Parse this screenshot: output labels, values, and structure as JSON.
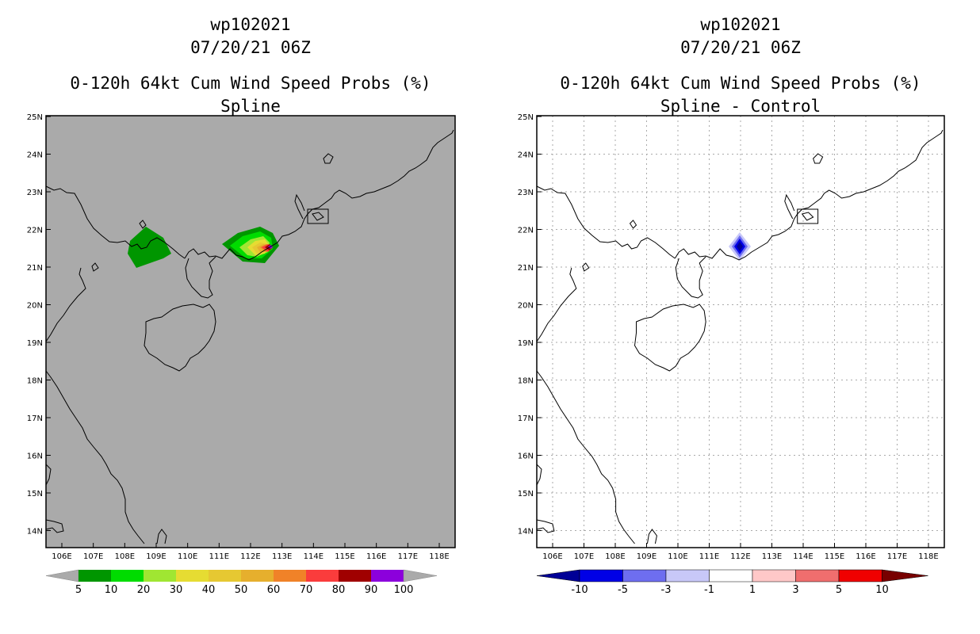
{
  "left_panel": {
    "title_lines": [
      "wp102021",
      "07/20/21 06Z",
      "0-120h 64kt Cum Wind Speed Probs (%)",
      "Spline"
    ],
    "lat_labels": [
      "25N",
      "24N",
      "23N",
      "22N",
      "21N",
      "20N",
      "19N",
      "18N",
      "17N",
      "16N",
      "15N",
      "14N"
    ],
    "lon_labels": [
      "106E",
      "107E",
      "108E",
      "109E",
      "110E",
      "111E",
      "112E",
      "113E",
      "114E",
      "115E",
      "116E",
      "117E",
      "118E"
    ],
    "colorbar": {
      "labels": [
        "5",
        "10",
        "20",
        "30",
        "40",
        "50",
        "60",
        "70",
        "80",
        "90",
        "100"
      ],
      "colors": [
        "#009600",
        "#00dc00",
        "#a0e632",
        "#e6dc32",
        "#e6c832",
        "#e6af2d",
        "#f08228",
        "#fa3c3c",
        "#a00000",
        "#8c00dc"
      ],
      "end_color": "#aaaaaa"
    }
  },
  "right_panel": {
    "title_lines": [
      "wp102021",
      "07/20/21 06Z",
      "0-120h 64kt Cum Wind Speed Probs (%)",
      "Spline - Control"
    ],
    "lat_labels": [
      "25N",
      "24N",
      "23N",
      "22N",
      "21N",
      "20N",
      "19N",
      "18N",
      "17N",
      "16N",
      "15N",
      "14N"
    ],
    "lon_labels": [
      "106E",
      "107E",
      "108E",
      "109E",
      "110E",
      "111E",
      "112E",
      "113E",
      "114E",
      "115E",
      "116E",
      "117E",
      "118E"
    ],
    "colorbar": {
      "labels": [
        "-10",
        "-5",
        "-3",
        "-1",
        "1",
        "3",
        "5",
        "10"
      ],
      "colors": [
        "#0000e6",
        "#6e6ef0",
        "#c8c8f8",
        "#ffffff",
        "#ffc8c8",
        "#f06e6e",
        "#f00000"
      ],
      "low_end_color": "#000096",
      "high_end_color": "#780000"
    }
  },
  "colors": {
    "background_fill": "#aaaaaa",
    "coast": "#000000",
    "grid": "#aaaaaa"
  }
}
